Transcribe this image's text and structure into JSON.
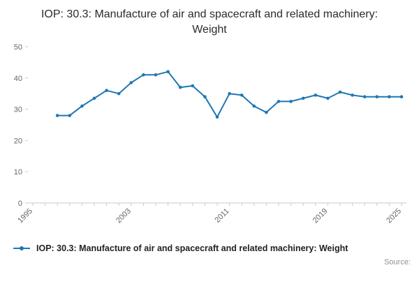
{
  "title": "IOP: 30.3: Manufacture of air and spacecraft and related machinery: Weight",
  "legend": {
    "label": "IOP: 30.3: Manufacture of air and spacecraft and related machinery: Weight"
  },
  "source_label": "Source:",
  "colors": {
    "line": "#1f77b4",
    "axis": "#c9c9c9",
    "text": "#666666"
  },
  "chart_data": {
    "type": "line",
    "title": "IOP: 30.3: Manufacture of air and spacecraft and related machinery: Weight",
    "x": [
      1997,
      1998,
      1999,
      2000,
      2001,
      2002,
      2003,
      2004,
      2005,
      2006,
      2007,
      2008,
      2009,
      2010,
      2011,
      2012,
      2013,
      2014,
      2015,
      2016,
      2017,
      2018,
      2019,
      2020,
      2021,
      2022,
      2023,
      2024,
      2025
    ],
    "series": [
      {
        "name": "IOP: 30.3: Manufacture of air and spacecraft and related machinery: Weight",
        "values": [
          28,
          28,
          31,
          33.5,
          36,
          35,
          38.5,
          41,
          41,
          42,
          37,
          37.5,
          34,
          27.5,
          35,
          34.5,
          31,
          29,
          32.5,
          32.5,
          33.5,
          34.5,
          33.5,
          35.5,
          34.5,
          34,
          34,
          34,
          34
        ]
      }
    ],
    "xlim": [
      1995,
      2025
    ],
    "ylim": [
      0,
      50
    ],
    "y_ticks": [
      0,
      10,
      20,
      30,
      40,
      50
    ],
    "x_tick_labels": [
      1995,
      2003,
      2011,
      2019,
      2025
    ],
    "x_minor_ticks_every": 1,
    "grid": false,
    "legend_position": "bottom-left",
    "marker": "circle"
  }
}
